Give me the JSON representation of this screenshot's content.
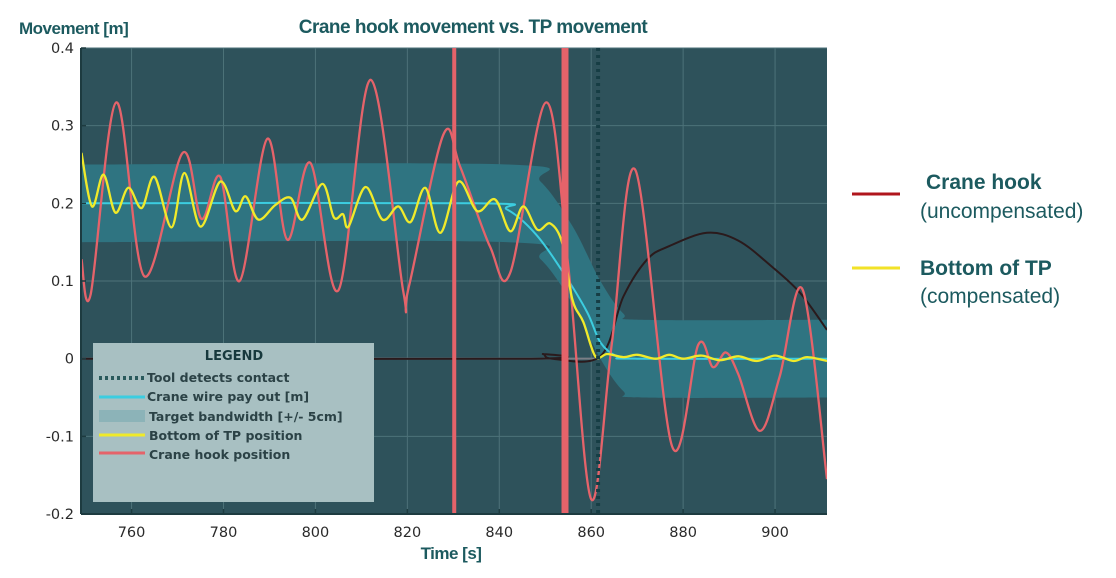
{
  "chart_data": {
    "type": "line",
    "title": "Crane hook movement vs. TP movement",
    "xlabel": "Time [s]",
    "ylabel": "Movement [m]",
    "xlim": [
      749,
      911.3
    ],
    "ylim": [
      -0.2,
      0.4
    ],
    "xticks": [
      "760",
      "780",
      "800",
      "820",
      "840",
      "860",
      "880",
      "900"
    ],
    "xtick_values": [
      760,
      780,
      800,
      820,
      840,
      860,
      880,
      900
    ],
    "yticks": [
      "0.4",
      "0.3",
      "0.2",
      "0.1",
      "0",
      "-0.1",
      "-0.2"
    ],
    "ytick_values": [
      0.4,
      0.3,
      0.2,
      0.1,
      0,
      -0.1,
      -0.2
    ],
    "grid": true,
    "colors": {
      "plot_bg": "#2e525b",
      "band": "#2f7481",
      "crane_wire": "#3ccde0",
      "tp": "#f0ea2a",
      "hook": "#e5636a",
      "contact": "#163d44",
      "uncompensated": "#2a1a1c",
      "baseline": "#7a7f86"
    },
    "legend": {
      "title": "LEGEND",
      "placement": "bottom-left",
      "entries": [
        {
          "label": "Tool detects contact",
          "style": "dotted"
        },
        {
          "label": "Crane wire pay out [m]",
          "style": "line"
        },
        {
          "label": "Target bandwidth [+/- 5cm]",
          "style": "band"
        },
        {
          "label": "Bottom of TP position",
          "style": "line"
        },
        {
          "label": "Crane hook position",
          "style": "line"
        }
      ]
    },
    "series": {
      "crane_wire": [
        [
          749,
          0.2
        ],
        [
          835,
          0.2
        ],
        [
          841.7,
          0.192
        ],
        [
          848,
          0.16
        ],
        [
          853.9,
          0.111
        ],
        [
          859.1,
          0.06
        ],
        [
          862,
          0.021
        ],
        [
          865.6,
          0.003
        ],
        [
          870,
          0
        ],
        [
          911.3,
          0
        ]
      ],
      "target_band_center": [
        [
          749,
          0.2
        ],
        [
          842,
          0.2
        ],
        [
          849,
          0.178
        ],
        [
          856,
          0.12
        ],
        [
          862,
          0.05
        ],
        [
          867,
          0.008
        ],
        [
          871,
          0
        ],
        [
          911.3,
          0
        ]
      ],
      "target_band_halfwidth": 0.05,
      "tp_bottom": [
        [
          749.1,
          0.265
        ],
        [
          751.4,
          0.196
        ],
        [
          753.9,
          0.237
        ],
        [
          756.5,
          0.188
        ],
        [
          759.3,
          0.22
        ],
        [
          762.2,
          0.194
        ],
        [
          765,
          0.234
        ],
        [
          768.7,
          0.169
        ],
        [
          771.5,
          0.239
        ],
        [
          775,
          0.17
        ],
        [
          779.3,
          0.228
        ],
        [
          782.6,
          0.19
        ],
        [
          784.8,
          0.209
        ],
        [
          787.6,
          0.179
        ],
        [
          791.3,
          0.198
        ],
        [
          794.6,
          0.207
        ],
        [
          797.2,
          0.179
        ],
        [
          801.5,
          0.225
        ],
        [
          804,
          0.182
        ],
        [
          806,
          0.186
        ],
        [
          807.2,
          0.17
        ],
        [
          810.9,
          0.221
        ],
        [
          814.6,
          0.179
        ],
        [
          818,
          0.196
        ],
        [
          820.7,
          0.176
        ],
        [
          823.9,
          0.22
        ],
        [
          827.2,
          0.162
        ],
        [
          831.1,
          0.228
        ],
        [
          835.2,
          0.19
        ],
        [
          839.1,
          0.205
        ],
        [
          842.4,
          0.164
        ],
        [
          845.2,
          0.196
        ],
        [
          848.3,
          0.166
        ],
        [
          851.1,
          0.174
        ],
        [
          853.7,
          0.149
        ],
        [
          855.9,
          0.076
        ],
        [
          858.3,
          0.047
        ],
        [
          860.9,
          0.003
        ],
        [
          863.5,
          0.006
        ],
        [
          867,
          0.002
        ],
        [
          870,
          0.005
        ],
        [
          874,
          0.0
        ],
        [
          877,
          0.005
        ],
        [
          880,
          0.0
        ],
        [
          884,
          0.004
        ],
        [
          888,
          -0.002
        ],
        [
          892,
          0.003
        ],
        [
          896,
          -0.003
        ],
        [
          900,
          0.004
        ],
        [
          904,
          -0.003
        ],
        [
          907,
          0.002
        ],
        [
          911.3,
          -0.003
        ]
      ],
      "crane_hook": [
        [
          749.1,
          0.128
        ],
        [
          751.1,
          0.083
        ],
        [
          756.7,
          0.33
        ],
        [
          762.8,
          0.106
        ],
        [
          771.1,
          0.265
        ],
        [
          775.2,
          0.18
        ],
        [
          779.3,
          0.234
        ],
        [
          783.5,
          0.1
        ],
        [
          789.5,
          0.283
        ],
        [
          793.9,
          0.153
        ],
        [
          798.9,
          0.252
        ],
        [
          805,
          0.088
        ],
        [
          812,
          0.359
        ],
        [
          819.1,
          0.087
        ],
        [
          820.3,
          0.092
        ],
        [
          827.8,
          0.288
        ],
        [
          831.5,
          0.247
        ],
        [
          838,
          0.144
        ],
        [
          842.4,
          0.111
        ],
        [
          850.2,
          0.33
        ],
        [
          855,
          0.12
        ],
        [
          860,
          -0.181
        ],
        [
          864.5,
          0.02
        ],
        [
          869.6,
          0.243
        ],
        [
          877.6,
          -0.113
        ],
        [
          883.3,
          0.018
        ],
        [
          886.5,
          -0.011
        ],
        [
          889.3,
          0.008
        ],
        [
          892,
          -0.02
        ],
        [
          896.7,
          -0.093
        ],
        [
          901,
          -0.023
        ],
        [
          906,
          0.089
        ],
        [
          911.3,
          -0.155
        ]
      ],
      "crane_hook_uncompensated": [
        [
          749,
          0
        ],
        [
          847,
          0
        ],
        [
          849.5,
          0.006
        ],
        [
          851.5,
          0
        ],
        [
          862,
          0.003
        ],
        [
          867,
          0.08
        ],
        [
          872.2,
          0.128
        ],
        [
          877,
          0.145
        ],
        [
          885.2,
          0.162
        ],
        [
          892,
          0.152
        ],
        [
          899,
          0.12
        ],
        [
          905.4,
          0.085
        ],
        [
          911.3,
          0.037
        ]
      ],
      "contact_time": 861.5,
      "markers_vertical": [
        830.2,
        854.3
      ]
    }
  },
  "annotations": {
    "hook_line1": "Crane hook",
    "hook_line2": "(uncompensated)",
    "tp_line1": "Bottom of TP",
    "tp_line2": "(compensated)",
    "hook_color": "#b0161c",
    "tp_color": "#f2e227"
  }
}
